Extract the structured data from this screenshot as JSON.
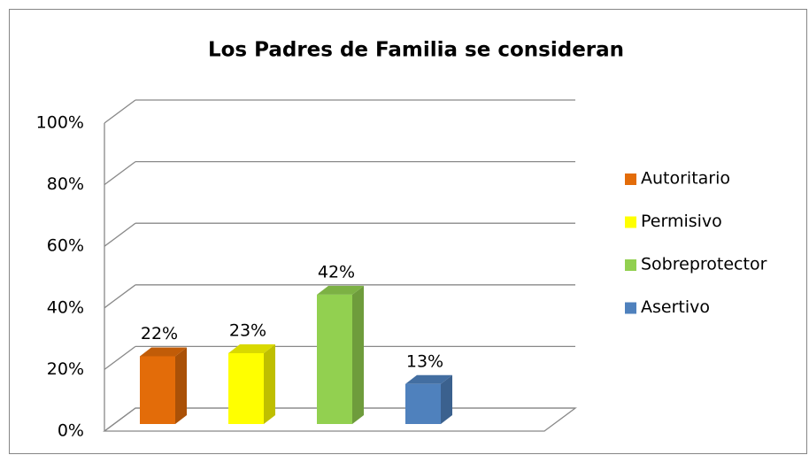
{
  "chart_data": {
    "type": "bar3d",
    "title": "Los Padres de Familia se consideran",
    "categories": [
      null
    ],
    "series": [
      {
        "name": "Autoritario",
        "color": "#e36c09",
        "values": [
          22
        ],
        "value_labels": [
          "22%"
        ]
      },
      {
        "name": "Permisivo",
        "color": "#ffff00",
        "values": [
          23
        ],
        "value_labels": [
          "23%"
        ]
      },
      {
        "name": "Sobreprotector",
        "color": "#92d050",
        "values": [
          42
        ],
        "value_labels": [
          "42%"
        ]
      },
      {
        "name": "Asertivo",
        "color": "#4f81bd",
        "values": [
          13
        ],
        "value_labels": [
          "13%"
        ]
      }
    ],
    "ylim": [
      0,
      100
    ],
    "yticks": [
      {
        "value": 0,
        "label": "0%"
      },
      {
        "value": 20,
        "label": "20%"
      },
      {
        "value": 40,
        "label": "40%"
      },
      {
        "value": 60,
        "label": "60%"
      },
      {
        "value": 80,
        "label": "80%"
      },
      {
        "value": 100,
        "label": "100%"
      }
    ],
    "grid": true,
    "legend": "right"
  }
}
